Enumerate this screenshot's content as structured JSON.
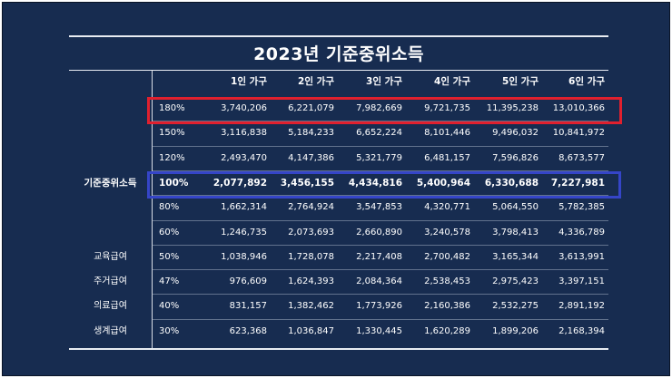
{
  "title": "2023년 기준중위소득",
  "columns": [
    "1인 가구",
    "2인 가구",
    "3인 가구",
    "4인 가구",
    "5인 가구",
    "6인 가구"
  ],
  "rows": [
    {
      "label": "",
      "pct": "180%",
      "values": [
        "3,740,206",
        "6,221,079",
        "7,982,669",
        "9,721,735",
        "11,395,238",
        "13,010,366"
      ]
    },
    {
      "label": "",
      "pct": "150%",
      "values": [
        "3,116,838",
        "5,184,233",
        "6,652,224",
        "8,101,446",
        "9,496,032",
        "10,841,972"
      ]
    },
    {
      "label": "",
      "pct": "120%",
      "values": [
        "2,493,470",
        "4,147,386",
        "5,321,779",
        "6,481,157",
        "7,596,826",
        "8,673,577"
      ]
    },
    {
      "label": "기준중위소득",
      "pct": "100%",
      "values": [
        "2,077,892",
        "3,456,155",
        "4,434,816",
        "5,400,964",
        "6,330,688",
        "7,227,981"
      ]
    },
    {
      "label": "",
      "pct": "80%",
      "values": [
        "1,662,314",
        "2,764,924",
        "3,547,853",
        "4,320,771",
        "5,064,550",
        "5,782,385"
      ]
    },
    {
      "label": "",
      "pct": "60%",
      "values": [
        "1,246,735",
        "2,073,693",
        "2,660,890",
        "3,240,578",
        "3,798,413",
        "4,336,789"
      ]
    },
    {
      "label": "교육급여",
      "pct": "50%",
      "values": [
        "1,038,946",
        "1,728,078",
        "2,217,408",
        "2,700,482",
        "3,165,344",
        "3,613,991"
      ]
    },
    {
      "label": "주거급여",
      "pct": "47%",
      "values": [
        "976,609",
        "1,624,393",
        "2,084,364",
        "2,538,453",
        "2,975,423",
        "3,397,151"
      ]
    },
    {
      "label": "의료급여",
      "pct": "40%",
      "values": [
        "831,157",
        "1,382,462",
        "1,773,926",
        "2,160,386",
        "2,532,275",
        "2,891,192"
      ]
    },
    {
      "label": "생계급여",
      "pct": "30%",
      "values": [
        "623,368",
        "1,036,847",
        "1,330,445",
        "1,620,289",
        "1,899,206",
        "2,168,394"
      ]
    }
  ],
  "colors": {
    "background": "#172c50",
    "highlight_180": "#e0202e",
    "highlight_100": "#3545c8"
  }
}
